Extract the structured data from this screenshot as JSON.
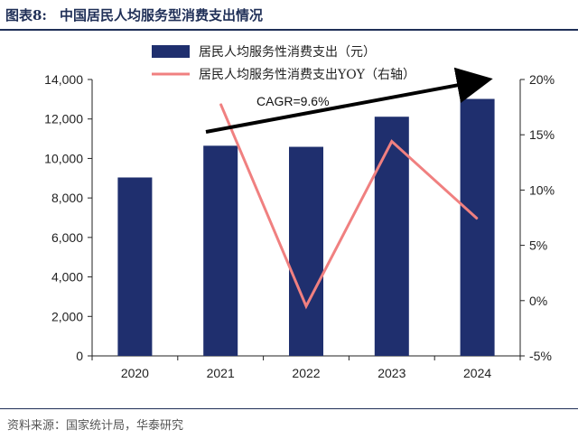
{
  "figure": {
    "number": "图表8:",
    "title": "中国居民人均服务型消费支出情况",
    "source": "资料来源：国家统计局，华泰研究"
  },
  "chart_data": {
    "type": "bar",
    "categories": [
      "2020",
      "2021",
      "2022",
      "2023",
      "2024"
    ],
    "series": [
      {
        "name": "居民人均服务性消费支出（元）",
        "type": "bar",
        "axis": "left",
        "values": [
          9037,
          10645,
          10590,
          12114,
          13016
        ],
        "color": "#1f2f6e"
      },
      {
        "name": "居民人均服务性消费支出YOY（右轴）",
        "type": "line",
        "axis": "right",
        "values": [
          null,
          17.8,
          -0.5,
          14.4,
          7.4
        ],
        "color": "#f08080"
      }
    ],
    "y_left": {
      "range": [
        0,
        14000
      ],
      "ticks": [
        "0",
        "2,000",
        "4,000",
        "6,000",
        "8,000",
        "10,000",
        "12,000",
        "14,000"
      ]
    },
    "y_right": {
      "range": [
        -5,
        20
      ],
      "ticks": [
        "-5%",
        "0%",
        "5%",
        "10%",
        "15%",
        "20%"
      ]
    },
    "annotation": {
      "text": "CAGR=9.6%"
    },
    "grid": false,
    "legend_position": "top-center"
  }
}
